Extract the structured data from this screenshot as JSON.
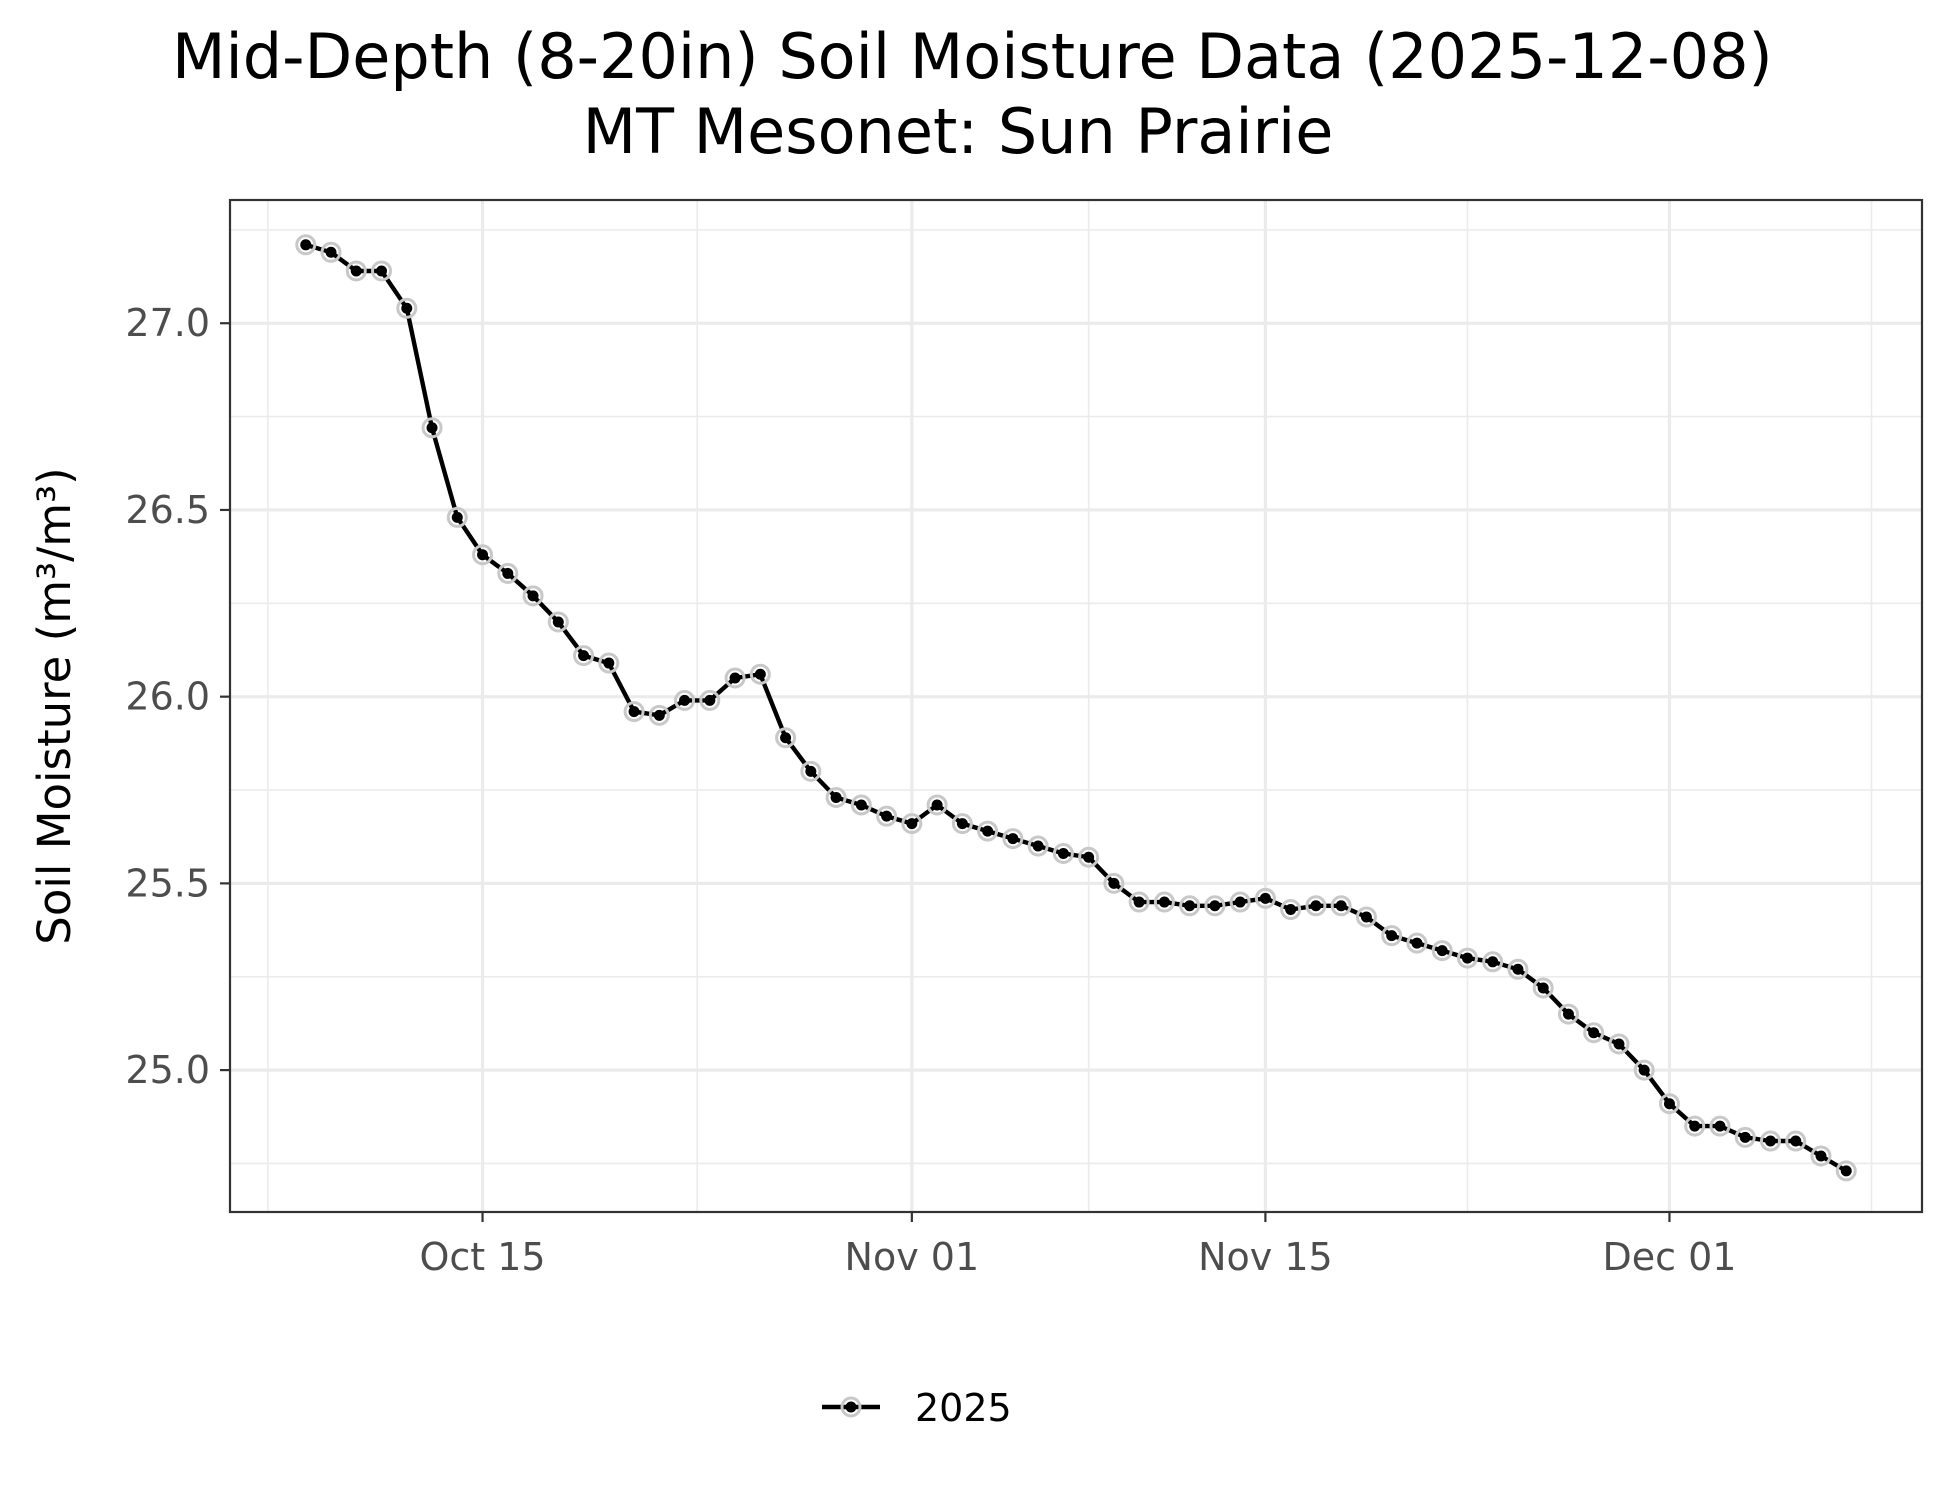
{
  "chart_data": {
    "type": "line",
    "title": "Mid-Depth (8-20in) Soil Moisture Data (2025-12-08)",
    "subtitle": "MT Mesonet: Sun Prairie",
    "xlabel": "",
    "ylabel": "Soil Moisture (m³/m³)",
    "x_tick_labels": [
      "Oct 15",
      "Nov 01",
      "Nov 15",
      "Dec 01"
    ],
    "x_ticks": [
      "2025-10-15",
      "2025-11-01",
      "2025-11-15",
      "2025-12-01"
    ],
    "y_tick_labels": [
      "25.0",
      "25.5",
      "26.0",
      "26.5",
      "27.0"
    ],
    "y_ticks": [
      25.0,
      25.5,
      26.0,
      26.5,
      27.0
    ],
    "xlim": [
      "2025-10-05",
      "2025-12-11"
    ],
    "ylim": [
      24.62,
      27.33
    ],
    "grid": true,
    "legend": {
      "position": "bottom",
      "entries": [
        "2025"
      ]
    },
    "series": [
      {
        "name": "2025",
        "color": "#000000",
        "point_halo_color": "#c8c8c8",
        "x": [
          "2025-10-08",
          "2025-10-09",
          "2025-10-10",
          "2025-10-11",
          "2025-10-12",
          "2025-10-13",
          "2025-10-14",
          "2025-10-15",
          "2025-10-16",
          "2025-10-17",
          "2025-10-18",
          "2025-10-19",
          "2025-10-20",
          "2025-10-21",
          "2025-10-22",
          "2025-10-23",
          "2025-10-24",
          "2025-10-25",
          "2025-10-26",
          "2025-10-27",
          "2025-10-28",
          "2025-10-29",
          "2025-10-30",
          "2025-10-31",
          "2025-11-01",
          "2025-11-02",
          "2025-11-03",
          "2025-11-04",
          "2025-11-05",
          "2025-11-06",
          "2025-11-07",
          "2025-11-08",
          "2025-11-09",
          "2025-11-10",
          "2025-11-11",
          "2025-11-12",
          "2025-11-13",
          "2025-11-14",
          "2025-11-15",
          "2025-11-16",
          "2025-11-17",
          "2025-11-18",
          "2025-11-19",
          "2025-11-20",
          "2025-11-21",
          "2025-11-22",
          "2025-11-23",
          "2025-11-24",
          "2025-11-25",
          "2025-11-26",
          "2025-11-27",
          "2025-11-28",
          "2025-11-29",
          "2025-11-30",
          "2025-12-01",
          "2025-12-02",
          "2025-12-03",
          "2025-12-04",
          "2025-12-05",
          "2025-12-06",
          "2025-12-07",
          "2025-12-08"
        ],
        "values": [
          27.21,
          27.19,
          27.14,
          27.14,
          27.04,
          26.72,
          26.48,
          26.38,
          26.33,
          26.27,
          26.2,
          26.11,
          26.09,
          25.96,
          25.95,
          25.99,
          25.99,
          26.05,
          26.06,
          25.89,
          25.8,
          25.73,
          25.71,
          25.68,
          25.66,
          25.71,
          25.66,
          25.64,
          25.62,
          25.6,
          25.58,
          25.57,
          25.5,
          25.45,
          25.45,
          25.44,
          25.44,
          25.45,
          25.46,
          25.43,
          25.44,
          25.44,
          25.41,
          25.36,
          25.34,
          25.32,
          25.3,
          25.29,
          25.27,
          25.22,
          25.15,
          25.1,
          25.07,
          25.0,
          24.91,
          24.85,
          24.85,
          24.82,
          24.81,
          24.81,
          24.77,
          24.73
        ]
      }
    ]
  }
}
